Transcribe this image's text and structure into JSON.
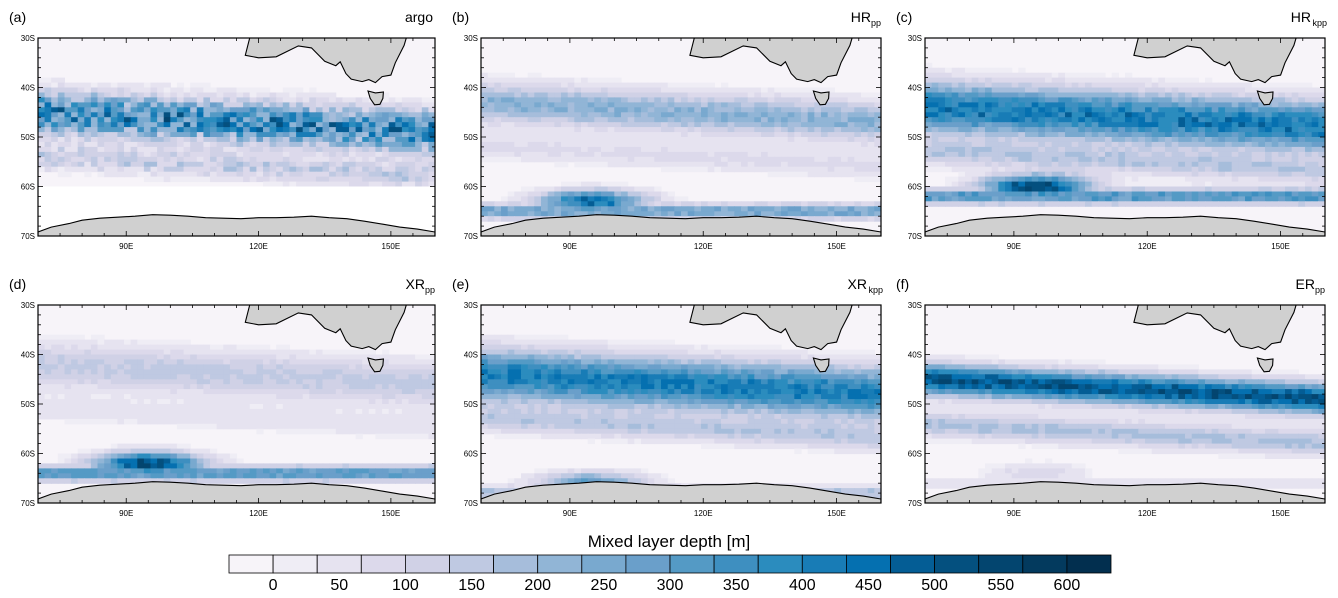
{
  "figure": {
    "colorbar": {
      "title": "Mixed layer depth [m]",
      "tick_labels": [
        "0",
        "50",
        "100",
        "150",
        "200",
        "250",
        "300",
        "350",
        "400",
        "450",
        "500",
        "550",
        "600"
      ],
      "colors": [
        "#f7f4f9",
        "#efedf5",
        "#e6e3f0",
        "#dcd9eb",
        "#d0d1e6",
        "#bfc9e2",
        "#a6bddb",
        "#91b5d6",
        "#79a9cf",
        "#6a9fca",
        "#549ac5",
        "#3e8fc0",
        "#2b8cbe",
        "#187cb6",
        "#0570b0",
        "#045d95",
        "#04507f",
        "#03456f",
        "#033a5e",
        "#022f4f"
      ]
    },
    "axes": {
      "lat_labels": [
        "30S",
        "40S",
        "50S",
        "60S",
        "70S"
      ],
      "lon_labels": [
        "90E",
        "120E",
        "150E"
      ]
    },
    "panels": [
      {
        "letter": "(a)",
        "name": "argo",
        "sub": ""
      },
      {
        "letter": "(b)",
        "name": "HR",
        "sub": "pp"
      },
      {
        "letter": "(c)",
        "name": "HR",
        "sub": "kpp"
      },
      {
        "letter": "(d)",
        "name": "XR",
        "sub": "pp"
      },
      {
        "letter": "(e)",
        "name": "XR",
        "sub": "kpp"
      },
      {
        "letter": "(f)",
        "name": "ER",
        "sub": "pp"
      }
    ]
  },
  "chart_data": {
    "type": "heatmap",
    "variable": "Mixed layer depth [m]",
    "lon_range": [
      70,
      160
    ],
    "lat_range": [
      -70,
      -30
    ],
    "value_range": [
      0,
      600
    ],
    "panels": [
      {
        "id": "a",
        "label": "argo",
        "band_lat": -45,
        "band_max": 380,
        "band_width": 4.2,
        "south_lat": -62,
        "south_max": 0,
        "valid_south_lat": -60,
        "noise": 0.45
      },
      {
        "id": "b",
        "label": "HRpp",
        "band_lat": -43,
        "band_max": 230,
        "band_width": 4.0,
        "south_lat": -63,
        "south_max": 470,
        "valid_south_lat": -70,
        "noise": 0.15
      },
      {
        "id": "c",
        "label": "HRkpp",
        "band_lat": -44,
        "band_max": 430,
        "band_width": 5.0,
        "south_lat": -60,
        "south_max": 560,
        "valid_south_lat": -70,
        "noise": 0.15
      },
      {
        "id": "d",
        "label": "XRpp",
        "band_lat": -42,
        "band_max": 150,
        "band_width": 4.5,
        "south_lat": -62,
        "south_max": 560,
        "valid_south_lat": -70,
        "noise": 0.12
      },
      {
        "id": "e",
        "label": "XRkpp",
        "band_lat": -44,
        "band_max": 420,
        "band_width": 5.0,
        "south_lat": -66,
        "south_max": 300,
        "valid_south_lat": -70,
        "noise": 0.12
      },
      {
        "id": "f",
        "label": "ERpp",
        "band_lat": -45,
        "band_max": 520,
        "band_width": 3.0,
        "south_lat": -64,
        "south_max": 90,
        "valid_south_lat": -70,
        "noise": 0.1
      }
    ]
  }
}
